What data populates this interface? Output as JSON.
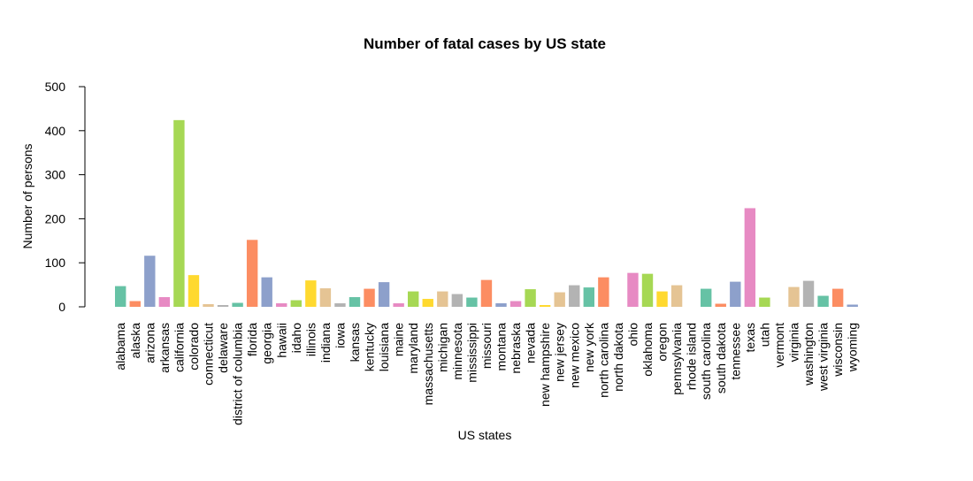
{
  "chart_data": {
    "type": "bar",
    "title": "Number of fatal cases by US state",
    "xlabel": "US states",
    "ylabel": "Number of persons",
    "ylim": [
      0,
      500
    ],
    "yticks": [
      0,
      100,
      200,
      300,
      400,
      500
    ],
    "grid": false,
    "categories": [
      "alabama",
      "alaska",
      "arizona",
      "arkansas",
      "california",
      "colorado",
      "connecticut",
      "delaware",
      "district of columbia",
      "florida",
      "georgia",
      "hawaii",
      "idaho",
      "illinois",
      "indiana",
      "iowa",
      "kansas",
      "kentucky",
      "louisiana",
      "maine",
      "maryland",
      "massachusetts",
      "michigan",
      "minnesota",
      "mississippi",
      "missouri",
      "montana",
      "nebraska",
      "nevada",
      "new hampshire",
      "new jersey",
      "new mexico",
      "new york",
      "north carolina",
      "north dakota",
      "ohio",
      "oklahoma",
      "oregon",
      "pennsylvania",
      "rhode island",
      "south carolina",
      "south dakota",
      "tennessee",
      "texas",
      "utah",
      "vermont",
      "virginia",
      "washington",
      "west virginia",
      "wisconsin",
      "wyoming"
    ],
    "values": [
      47,
      13,
      116,
      22,
      424,
      72,
      6,
      4,
      9,
      152,
      67,
      8,
      15,
      60,
      42,
      8,
      22,
      41,
      56,
      8,
      35,
      18,
      35,
      29,
      21,
      61,
      8,
      13,
      40,
      4,
      33,
      49,
      44,
      67,
      0,
      77,
      75,
      35,
      49,
      0,
      41,
      7,
      57,
      224,
      21,
      0,
      45,
      59,
      25,
      41,
      5
    ],
    "colors": [
      "#66c2a5",
      "#fc8d62",
      "#8da0cb",
      "#e78ac3",
      "#a6d854",
      "#ffd92f",
      "#e5c494",
      "#b3b3b3"
    ]
  }
}
